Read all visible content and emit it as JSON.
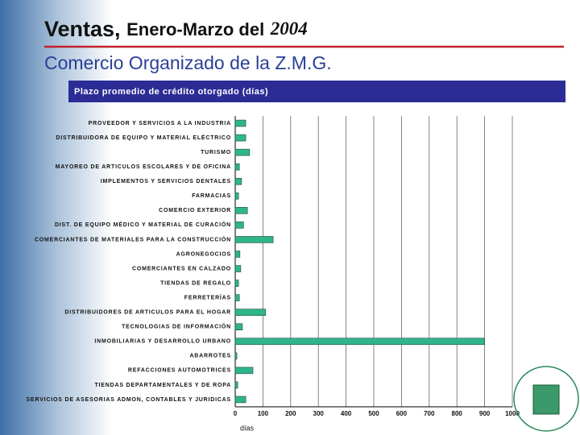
{
  "chart_data": {
    "type": "barh",
    "title": [
      "Ventas,",
      "Enero-Marzo del",
      "2004"
    ],
    "subtitle": "Comercio Organizado de la Z.M.G.",
    "chart_title": "Plazo promedio de crédito otorgado (días)",
    "xlabel": "días",
    "categories": [
      "PROVEEDOR Y SERVICIOS A LA INDUSTRIA",
      "DISTRIBUIDORA DE EQUIPO Y MATERIAL ELÉCTRICO",
      "TURISMO",
      "MAYOREO DE ARTICULOS ESCOLARES Y DE OFICINA",
      "IMPLEMENTOS Y SERVICIOS DENTALES",
      "FARMACIAS",
      "COMERCIO EXTERIOR",
      "DIST. DE EQUIPO MÉDICO Y MATERIAL DE CURACIÓN",
      "COMERCIANTES DE MATERIALES PARA LA CONSTRUCCIÓN",
      "AGRONEGOCIOS",
      "COMERCIANTES EN CALZADO",
      "TIENDAS DE REGALO",
      "FERRETERÍAS",
      "DISTRIBUIDORES DE ARTICULOS PARA EL HOGAR",
      "TECNOLOGIAS DE INFORMACIÓN",
      "INMOBILIARIAS Y DESARROLLO URBANO",
      "ABARROTES",
      "REFACCIONES AUTOMOTRICES",
      "TIENDAS DEPARTAMENTALES Y DE ROPA",
      "SERVICIOS DE ASESORIAS ADMON, CONTABLES Y JURIDICAS"
    ],
    "values": [
      38,
      38,
      52,
      15,
      23,
      12,
      44,
      30,
      137,
      17,
      20,
      12,
      15,
      110,
      26,
      900,
      6,
      64,
      9,
      38
    ],
    "color": "#2fb58c",
    "xlim": [
      0,
      1000
    ],
    "xticks": [
      0,
      100,
      200,
      300,
      400,
      500,
      600,
      700,
      800,
      900,
      1000
    ],
    "grid": true
  }
}
